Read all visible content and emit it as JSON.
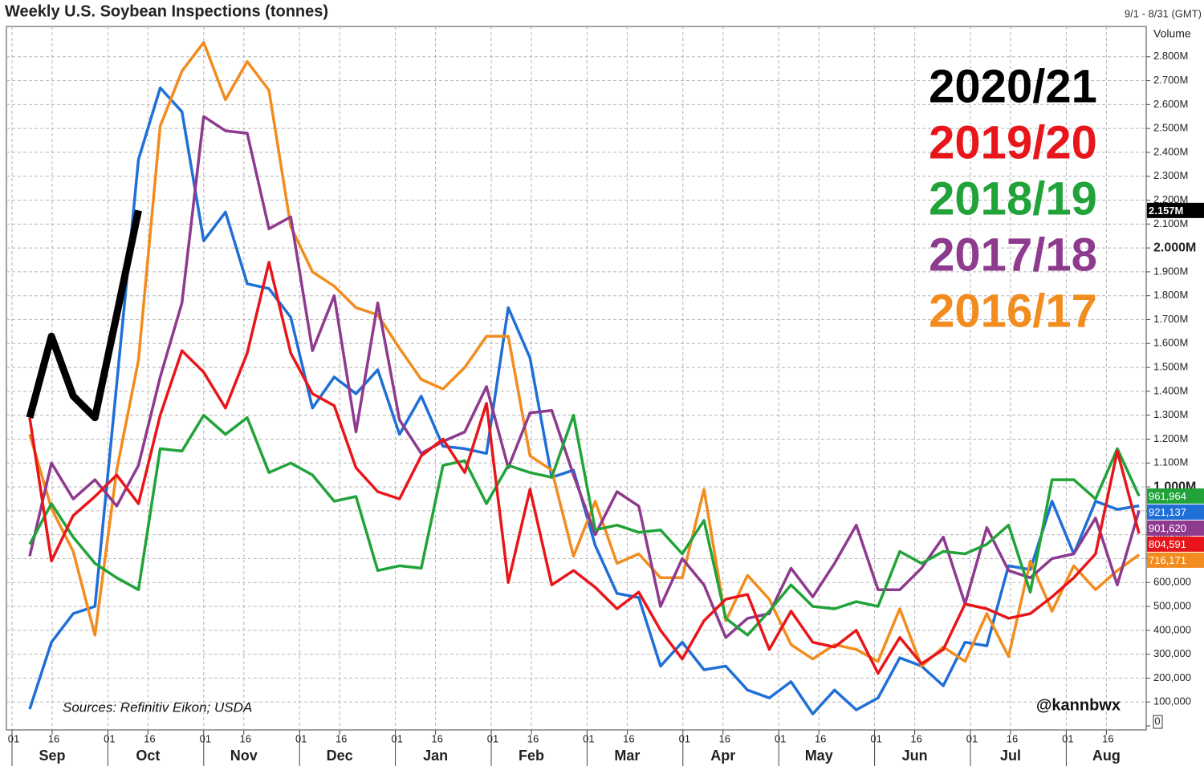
{
  "chart_data": {
    "type": "line",
    "title": "Weekly U.S. Soybean Inspections (tonnes)",
    "date_range": "9/1 - 8/31 (GMT)",
    "y_axis_label": "Volume",
    "annotations": [
      "Sources: Refinitiv Eikon; USDA",
      "@kannbwx"
    ],
    "months": [
      "Sep",
      "Oct",
      "Nov",
      "Dec",
      "Jan",
      "Feb",
      "Mar",
      "Apr",
      "May",
      "Jun",
      "Jul",
      "Aug"
    ],
    "day_labels": [
      "01",
      "16"
    ],
    "ylim": [
      0,
      2920000
    ],
    "yticks": [
      0,
      {
        "value": 100000,
        "label": "100,000"
      },
      {
        "value": 200000,
        "label": "200,000"
      },
      {
        "value": 300000,
        "label": "300,000"
      },
      {
        "value": 400000,
        "label": "400,000"
      },
      {
        "value": 500000,
        "label": "500,000"
      },
      {
        "value": 600000,
        "label": "600,000"
      },
      {
        "value": 700000,
        "label": "700,000"
      },
      {
        "value": 800000,
        "label": "800,000"
      },
      {
        "value": 900000,
        "label": "900,000"
      },
      {
        "value": 1000000,
        "label": "1.000M"
      },
      {
        "value": 1100000,
        "label": "1.100M"
      },
      {
        "value": 1200000,
        "label": "1.200M"
      },
      {
        "value": 1300000,
        "label": "1.300M"
      },
      {
        "value": 1400000,
        "label": "1.400M"
      },
      {
        "value": 1500000,
        "label": "1.500M"
      },
      {
        "value": 1600000,
        "label": "1.600M"
      },
      {
        "value": 1700000,
        "label": "1.700M"
      },
      {
        "value": 1800000,
        "label": "1.800M"
      },
      {
        "value": 1900000,
        "label": "1.900M"
      },
      {
        "value": 2000000,
        "label": "2.000M"
      },
      {
        "value": 2100000,
        "label": "2.100M"
      },
      {
        "value": 2200000,
        "label": "2.200M"
      },
      {
        "value": 2300000,
        "label": "2.300M"
      },
      {
        "value": 2400000,
        "label": "2.400M"
      },
      {
        "value": 2500000,
        "label": "2.500M"
      },
      {
        "value": 2600000,
        "label": "2.600M"
      },
      {
        "value": 2700000,
        "label": "2.700M"
      },
      {
        "value": 2800000,
        "label": "2.800M"
      }
    ],
    "grid": true,
    "series": [
      {
        "name": null,
        "color": "#1f6fd6",
        "values": [
          70000,
          350000,
          470000,
          500000,
          1430000,
          2370000,
          2670000,
          2570000,
          2030000,
          2150000,
          1850000,
          1830000,
          1710000,
          1330000,
          1460000,
          1390000,
          1490000,
          1220000,
          1380000,
          1170000,
          1160000,
          1140000,
          1750000,
          1540000,
          1040000,
          1070000,
          755000,
          554000,
          537000,
          250000,
          350000,
          235000,
          250000,
          150000,
          117000,
          185000,
          50000,
          150000,
          67000,
          117000,
          285000,
          250000,
          168000,
          350000,
          335000,
          670000,
          654000,
          940000,
          720000,
          940000,
          906000,
          921137
        ],
        "value_labels": [
          null,
          null,
          null,
          null,
          null,
          null,
          null,
          null,
          null,
          null,
          null,
          null,
          null,
          null,
          null,
          null,
          null,
          null,
          null,
          null,
          null,
          null,
          null,
          null,
          null,
          null,
          null,
          null,
          null,
          null,
          null,
          null,
          null,
          null,
          null,
          null,
          null,
          null,
          null,
          null,
          null,
          null,
          null,
          null,
          null,
          null,
          null,
          null,
          null,
          null,
          null,
          "921,137"
        ]
      },
      {
        "name": "2016/17",
        "color": "#f28c1e",
        "values": [
          1220000,
          910000,
          730000,
          380000,
          1070000,
          1530000,
          2510000,
          2740000,
          2860000,
          2620000,
          2780000,
          2660000,
          2090000,
          1900000,
          1840000,
          1750000,
          1720000,
          1580000,
          1450000,
          1410000,
          1500000,
          1630000,
          1630000,
          1130000,
          1070000,
          710000,
          940000,
          680000,
          720000,
          620000,
          620000,
          990000,
          440000,
          630000,
          530000,
          340000,
          280000,
          340000,
          320000,
          270000,
          490000,
          250000,
          330000,
          270000,
          470000,
          290000,
          690000,
          480000,
          670000,
          570000,
          650000,
          716171
        ],
        "value_labels": [
          null,
          null,
          null,
          null,
          null,
          null,
          null,
          null,
          null,
          null,
          null,
          null,
          null,
          null,
          null,
          null,
          null,
          null,
          null,
          null,
          null,
          null,
          null,
          null,
          null,
          null,
          null,
          null,
          null,
          null,
          null,
          null,
          null,
          null,
          null,
          null,
          null,
          null,
          null,
          null,
          null,
          null,
          null,
          null,
          null,
          null,
          null,
          null,
          null,
          null,
          null,
          "716,171"
        ]
      },
      {
        "name": "2017/18",
        "color": "#8e3a8e",
        "values": [
          710000,
          1100000,
          950000,
          1030000,
          920000,
          1090000,
          1460000,
          1770000,
          2550000,
          2490000,
          2480000,
          2080000,
          2130000,
          1570000,
          1800000,
          1230000,
          1770000,
          1280000,
          1140000,
          1190000,
          1230000,
          1420000,
          1080000,
          1310000,
          1320000,
          1050000,
          800000,
          980000,
          920000,
          500000,
          700000,
          590000,
          370000,
          450000,
          470000,
          660000,
          540000,
          680000,
          840000,
          570000,
          570000,
          660000,
          790000,
          510000,
          830000,
          650000,
          620000,
          700000,
          720000,
          870000,
          590000,
          901620
        ],
        "value_labels": [
          null,
          null,
          null,
          null,
          null,
          null,
          null,
          null,
          null,
          null,
          null,
          null,
          null,
          null,
          null,
          null,
          null,
          null,
          null,
          null,
          null,
          null,
          null,
          null,
          null,
          null,
          null,
          null,
          null,
          null,
          null,
          null,
          null,
          null,
          null,
          null,
          null,
          null,
          null,
          null,
          null,
          null,
          null,
          null,
          null,
          null,
          null,
          null,
          null,
          null,
          null,
          "901,620"
        ]
      },
      {
        "name": "2018/19",
        "color": "#21a33a",
        "values": [
          760000,
          930000,
          790000,
          680000,
          620000,
          570000,
          1160000,
          1150000,
          1300000,
          1220000,
          1290000,
          1060000,
          1100000,
          1050000,
          940000,
          960000,
          650000,
          670000,
          660000,
          1090000,
          1110000,
          930000,
          1090000,
          1060000,
          1040000,
          1300000,
          820000,
          840000,
          810000,
          820000,
          720000,
          860000,
          450000,
          380000,
          480000,
          590000,
          500000,
          490000,
          520000,
          500000,
          730000,
          680000,
          730000,
          720000,
          760000,
          840000,
          560000,
          1030000,
          1030000,
          950000,
          1160000,
          961964
        ],
        "value_labels": [
          null,
          null,
          null,
          null,
          null,
          null,
          null,
          null,
          null,
          null,
          null,
          null,
          null,
          null,
          null,
          null,
          null,
          null,
          null,
          null,
          null,
          null,
          null,
          null,
          null,
          null,
          null,
          null,
          null,
          null,
          null,
          null,
          null,
          null,
          null,
          null,
          null,
          null,
          null,
          null,
          null,
          null,
          null,
          null,
          null,
          null,
          null,
          null,
          null,
          null,
          null,
          "961,964"
        ]
      },
      {
        "name": "2019/20",
        "color": "#e8161b",
        "values": [
          1290000,
          690000,
          880000,
          960000,
          1050000,
          930000,
          1300000,
          1570000,
          1480000,
          1330000,
          1560000,
          1940000,
          1560000,
          1390000,
          1340000,
          1080000,
          980000,
          950000,
          1130000,
          1200000,
          1060000,
          1350000,
          600000,
          990000,
          590000,
          650000,
          580000,
          490000,
          560000,
          400000,
          280000,
          440000,
          530000,
          550000,
          320000,
          480000,
          350000,
          330000,
          400000,
          220000,
          370000,
          260000,
          320000,
          510000,
          490000,
          450000,
          470000,
          540000,
          620000,
          720000,
          1150000,
          804591
        ],
        "value_labels": [
          null,
          null,
          null,
          null,
          null,
          null,
          null,
          null,
          null,
          null,
          null,
          null,
          null,
          null,
          null,
          null,
          null,
          null,
          null,
          null,
          null,
          null,
          null,
          null,
          null,
          null,
          null,
          null,
          null,
          null,
          null,
          null,
          null,
          null,
          null,
          null,
          null,
          null,
          null,
          null,
          null,
          null,
          null,
          null,
          null,
          null,
          null,
          null,
          null,
          null,
          null,
          "804,591"
        ]
      },
      {
        "name": "2020/21",
        "color": "#000000",
        "values": [
          1290000,
          1630000,
          1380000,
          1290000,
          1720000,
          2157000,
          null,
          null,
          null,
          null,
          null,
          null,
          null,
          null,
          null,
          null,
          null,
          null,
          null,
          null,
          null,
          null,
          null,
          null,
          null,
          null,
          null,
          null,
          null,
          null,
          null,
          null,
          null,
          null,
          null,
          null,
          null,
          null,
          null,
          null,
          null,
          null,
          null,
          null,
          null,
          null,
          null,
          null,
          null,
          null,
          null,
          null
        ],
        "value_labels": [
          null,
          null,
          null,
          null,
          null,
          "2.157M",
          null,
          null,
          null,
          null,
          null,
          null,
          null,
          null,
          null,
          null,
          null,
          null,
          null,
          null,
          null,
          null,
          null,
          null,
          null,
          null,
          null,
          null,
          null,
          null,
          null,
          null,
          null,
          null,
          null,
          null,
          null,
          null,
          null,
          null,
          null,
          null,
          null,
          null,
          null,
          null,
          null,
          null,
          null,
          null,
          null,
          null
        ]
      }
    ]
  }
}
